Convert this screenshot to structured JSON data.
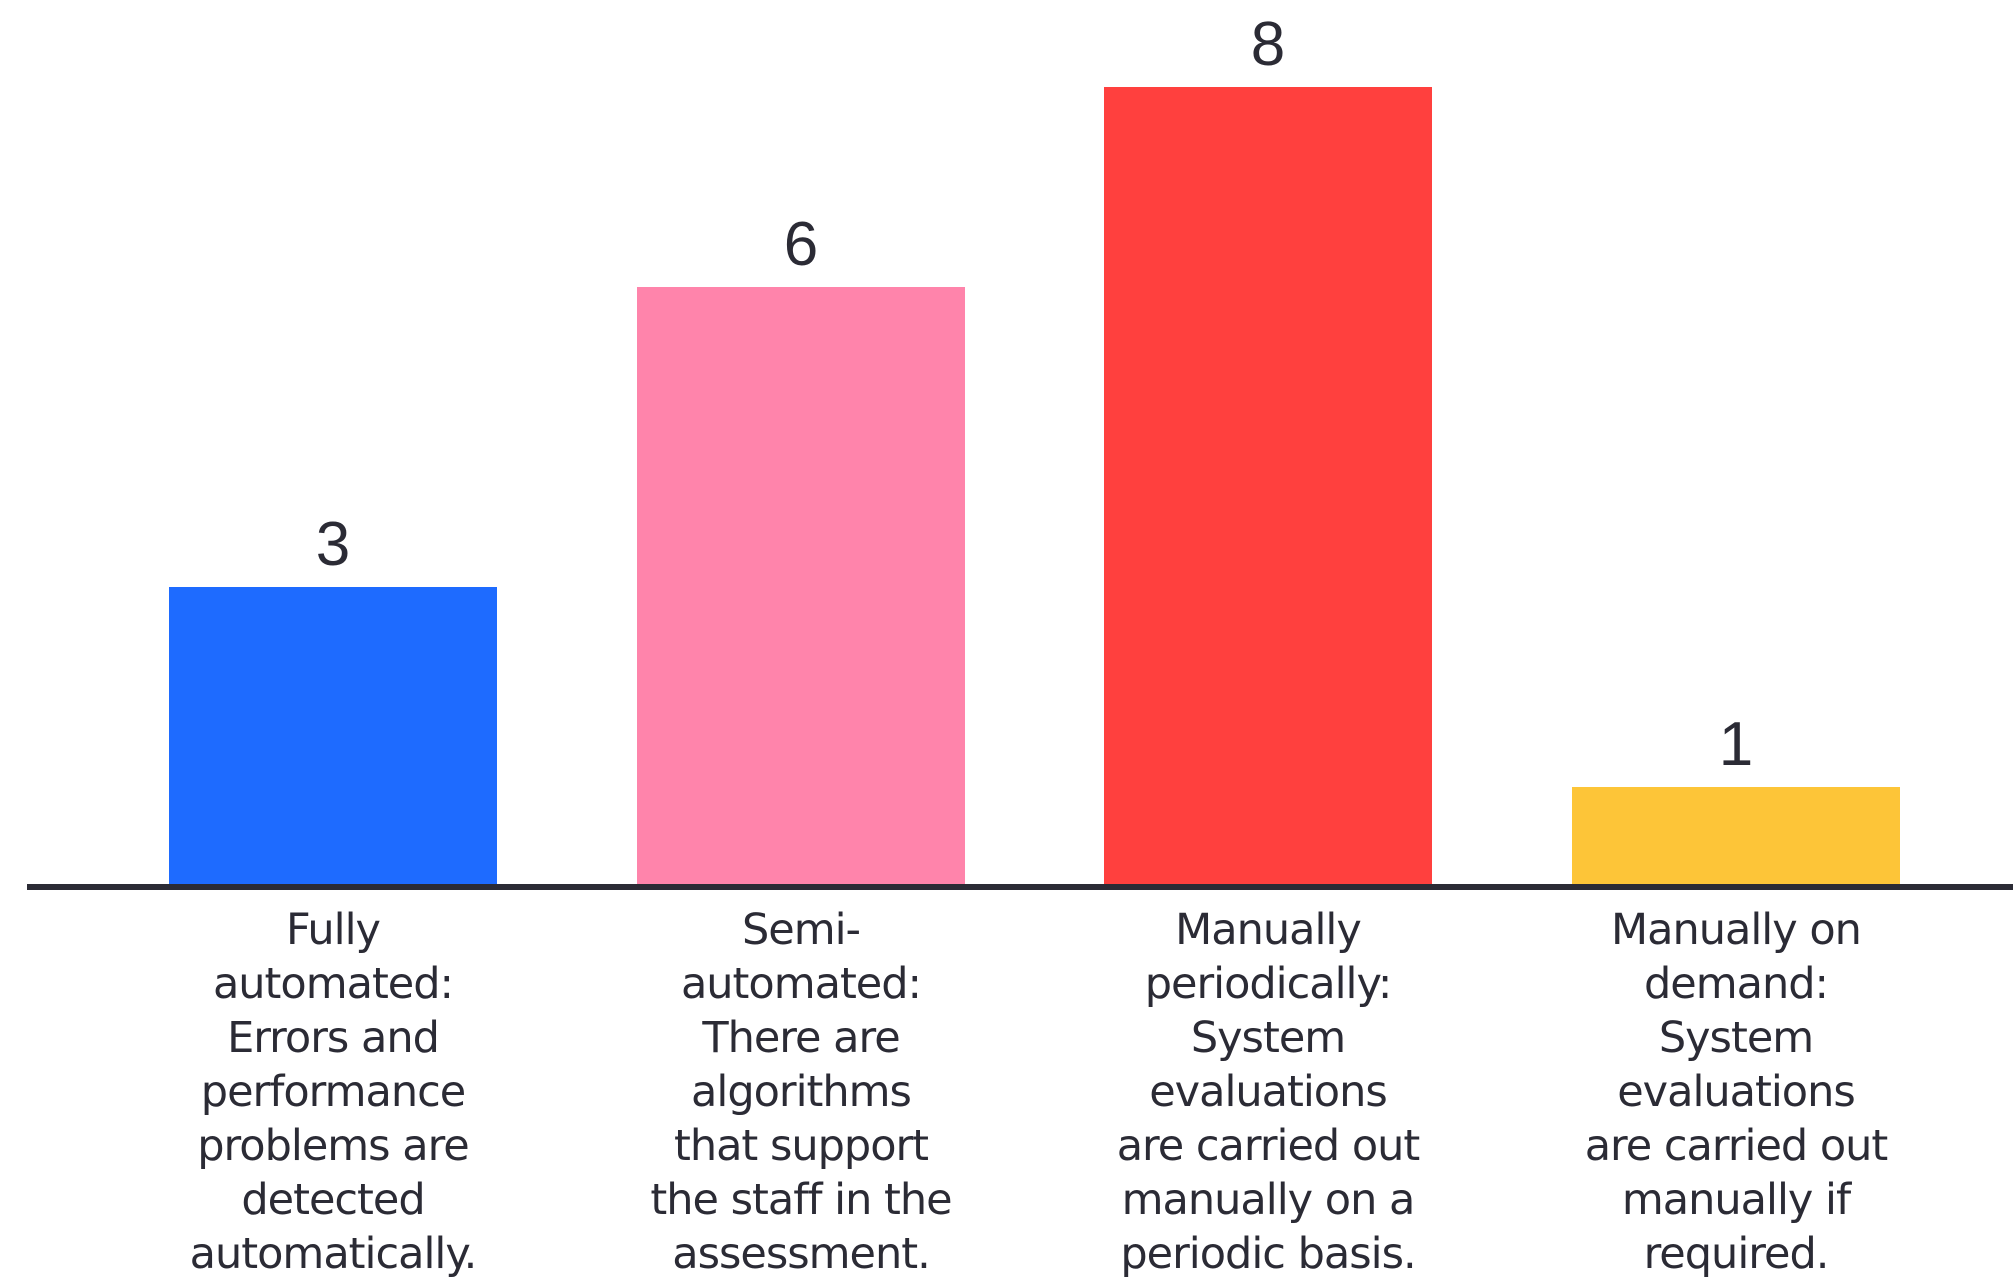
{
  "chart_data": {
    "type": "bar",
    "categories": [
      [
        "Fully",
        "automated:",
        "Errors and",
        "performance",
        "problems are",
        "detected",
        "automatically."
      ],
      [
        "Semi-",
        "automated:",
        "There are",
        "algorithms",
        "that support",
        "the staff in the",
        "assessment."
      ],
      [
        "Manually",
        "periodically:",
        "System",
        "evaluations",
        "are carried out",
        "manually on a",
        "periodic basis."
      ],
      [
        "Manually on",
        "demand:",
        "System",
        "evaluations",
        "are carried out",
        "manually if",
        "required."
      ]
    ],
    "values": [
      3,
      6,
      8,
      1
    ],
    "data_labels": [
      "3",
      "6",
      "8",
      "1"
    ],
    "colors": [
      "#1e6bff",
      "#ff84ab",
      "#ff403e",
      "#fdc538"
    ],
    "axis_color": "#2b2b35",
    "title": "",
    "xlabel": "",
    "ylabel": "",
    "ylim": [
      0,
      8
    ],
    "grid": false,
    "legend": "none"
  }
}
